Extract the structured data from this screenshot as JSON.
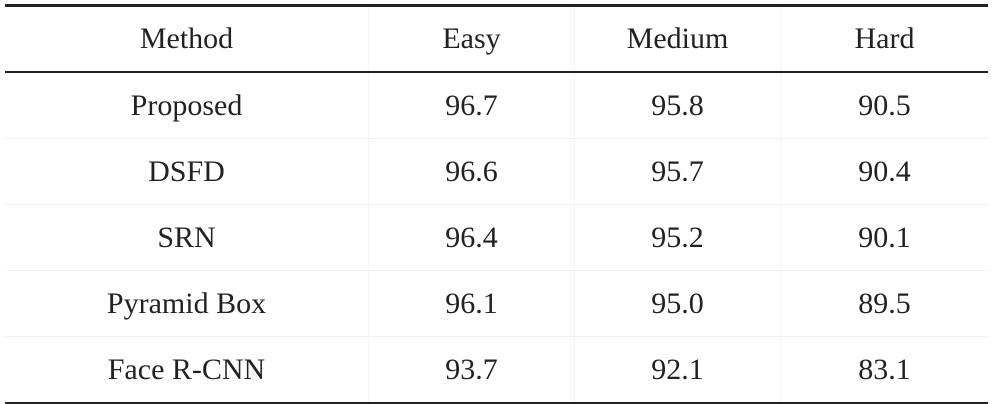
{
  "table": {
    "header": [
      "Method",
      "Easy",
      "Medium",
      "Hard"
    ],
    "rows": [
      [
        "Proposed",
        "96.7",
        "95.8",
        "90.5"
      ],
      [
        "DSFD",
        "96.6",
        "95.7",
        "90.4"
      ],
      [
        "SRN",
        "96.4",
        "95.2",
        "90.1"
      ],
      [
        "Pyramid Box",
        "96.1",
        "95.0",
        "89.5"
      ],
      [
        "Face R-CNN",
        "93.7",
        "92.1",
        "83.1"
      ]
    ]
  }
}
